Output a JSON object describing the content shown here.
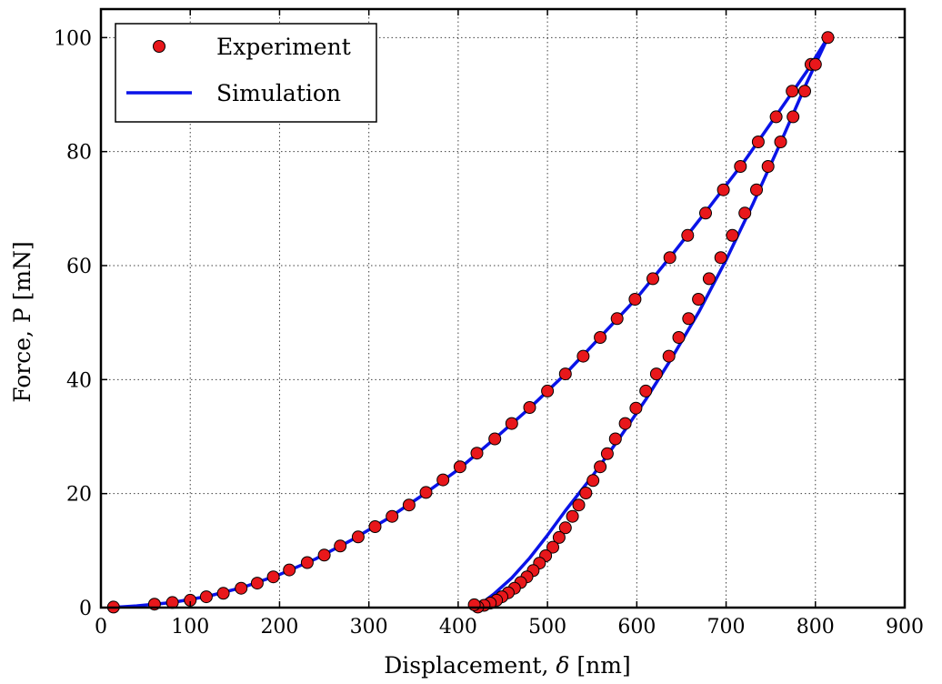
{
  "chart_data": {
    "type": "line",
    "title": "",
    "xlabel_text": "Displacement, ",
    "xlabel_symbol": "δ",
    "xlabel_unit": " [nm]",
    "ylabel": "Force, P [mN]",
    "xlim": [
      0,
      900
    ],
    "ylim": [
      0,
      105
    ],
    "xticks": [
      0,
      100,
      200,
      300,
      400,
      500,
      600,
      700,
      800,
      900
    ],
    "yticks": [
      0,
      20,
      40,
      60,
      80,
      100
    ],
    "grid": true,
    "legend": {
      "placement": "top-left",
      "entries": [
        {
          "label": "Experiment",
          "marker": "circle",
          "color": "#e8171b"
        },
        {
          "label": "Simulation",
          "marker": "line",
          "color": "#0a13e8"
        }
      ]
    },
    "series": [
      {
        "name": "Experiment",
        "kind": "scatter",
        "color": "#e8171b",
        "points": [
          [
            14,
            0.1
          ],
          [
            60,
            0.6
          ],
          [
            80,
            0.9
          ],
          [
            100,
            1.3
          ],
          [
            118,
            1.9
          ],
          [
            137,
            2.5
          ],
          [
            157,
            3.4
          ],
          [
            175,
            4.3
          ],
          [
            193,
            5.4
          ],
          [
            211,
            6.6
          ],
          [
            231,
            7.9
          ],
          [
            250,
            9.2
          ],
          [
            268,
            10.8
          ],
          [
            288,
            12.4
          ],
          [
            307,
            14.2
          ],
          [
            326,
            16.0
          ],
          [
            345,
            18.0
          ],
          [
            364,
            20.2
          ],
          [
            383,
            22.4
          ],
          [
            402,
            24.7
          ],
          [
            421,
            27.1
          ],
          [
            441,
            29.6
          ],
          [
            460,
            32.3
          ],
          [
            480,
            35.1
          ],
          [
            500,
            38.0
          ],
          [
            520,
            41.0
          ],
          [
            540,
            44.1
          ],
          [
            559,
            47.4
          ],
          [
            578,
            50.7
          ],
          [
            598,
            54.1
          ],
          [
            618,
            57.7
          ],
          [
            637,
            61.4
          ],
          [
            657,
            65.3
          ],
          [
            677,
            69.2
          ],
          [
            697,
            73.3
          ],
          [
            716,
            77.4
          ],
          [
            736,
            81.7
          ],
          [
            756,
            86.1
          ],
          [
            774,
            90.6
          ],
          [
            795,
            95.3
          ],
          [
            814,
            100
          ],
          [
            800,
            95.3
          ],
          [
            788,
            90.6
          ],
          [
            775,
            86.1
          ],
          [
            761,
            81.7
          ],
          [
            747,
            77.4
          ],
          [
            734,
            73.3
          ],
          [
            721,
            69.2
          ],
          [
            707,
            65.3
          ],
          [
            694,
            61.4
          ],
          [
            681,
            57.7
          ],
          [
            669,
            54.1
          ],
          [
            658,
            50.7
          ],
          [
            647,
            47.4
          ],
          [
            636,
            44.1
          ],
          [
            622,
            41.0
          ],
          [
            610,
            38.0
          ],
          [
            599,
            35.0
          ],
          [
            587,
            32.3
          ],
          [
            576,
            29.6
          ],
          [
            567,
            27.0
          ],
          [
            559,
            24.7
          ],
          [
            551,
            22.3
          ],
          [
            543,
            20.1
          ],
          [
            535,
            18.0
          ],
          [
            528,
            16.0
          ],
          [
            520,
            14.0
          ],
          [
            513,
            12.3
          ],
          [
            506,
            10.6
          ],
          [
            498,
            9.1
          ],
          [
            491,
            7.8
          ],
          [
            484,
            6.5
          ],
          [
            477,
            5.4
          ],
          [
            470,
            4.4
          ],
          [
            463,
            3.4
          ],
          [
            456,
            2.6
          ],
          [
            449,
            1.9
          ],
          [
            443,
            1.3
          ],
          [
            436,
            0.8
          ],
          [
            429,
            0.4
          ],
          [
            422,
            0.1
          ],
          [
            418,
            0.5
          ]
        ]
      },
      {
        "name": "Simulation",
        "kind": "line",
        "color": "#0a13e8",
        "x": [
          10,
          40,
          80,
          120,
          160,
          200,
          240,
          280,
          320,
          360,
          400,
          440,
          480,
          520,
          560,
          600,
          640,
          680,
          720,
          760,
          790,
          814
        ],
        "y": [
          0,
          0.3,
          0.9,
          2.0,
          3.6,
          5.8,
          8.5,
          11.8,
          15.5,
          19.7,
          24.2,
          29.5,
          35.0,
          41.0,
          47.6,
          54.3,
          62.0,
          70.0,
          78.2,
          87.2,
          94.0,
          100
        ],
        "x2": [
          814,
          790,
          760,
          730,
          700,
          670,
          640,
          610,
          580,
          550,
          520,
          500,
          480,
          460,
          440,
          420
        ],
        "y2": [
          100,
          92,
          81.2,
          70.8,
          61,
          52,
          44,
          36.5,
          29.6,
          23,
          17.0,
          12.7,
          8.7,
          5.2,
          2.4,
          0
        ]
      }
    ]
  }
}
